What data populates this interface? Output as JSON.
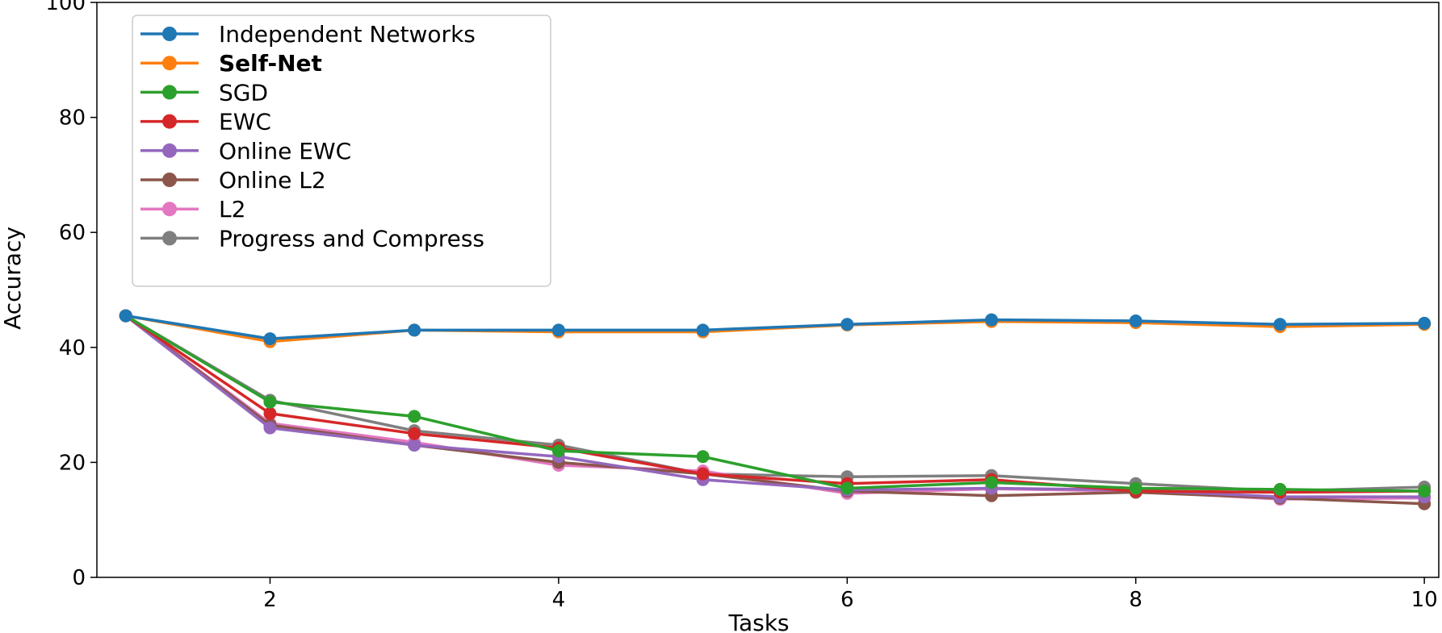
{
  "chart_data": {
    "type": "line",
    "title": "",
    "xlabel": "Tasks",
    "ylabel": "Accuracy",
    "xlim": [
      0.8,
      10.1
    ],
    "ylim": [
      0,
      100
    ],
    "xticks": [
      2,
      4,
      6,
      8,
      10
    ],
    "yticks": [
      0,
      20,
      40,
      60,
      80,
      100
    ],
    "grid": false,
    "legend_position": "top-left",
    "x": [
      1,
      2,
      3,
      4,
      5,
      6,
      7,
      8,
      9,
      10
    ],
    "series": [
      {
        "name": "Independent Networks",
        "bold": false,
        "color": "#1f77b4",
        "values": [
          45.5,
          41.5,
          43.0,
          43.0,
          43.0,
          44.0,
          44.8,
          44.6,
          44.0,
          44.2
        ]
      },
      {
        "name": "Self-Net",
        "bold": true,
        "color": "#ff7f0e",
        "values": [
          45.5,
          41.0,
          43.0,
          42.7,
          42.7,
          43.9,
          44.5,
          44.3,
          43.6,
          44.0
        ]
      },
      {
        "name": "SGD",
        "bold": false,
        "color": "#2ca02c",
        "values": [
          45.5,
          30.5,
          28.0,
          22.0,
          21.0,
          15.5,
          16.5,
          15.5,
          15.3,
          15.0
        ]
      },
      {
        "name": "EWC",
        "bold": false,
        "color": "#d62728",
        "values": [
          45.5,
          28.5,
          25.0,
          22.5,
          18.0,
          16.3,
          17.0,
          15.0,
          14.8,
          15.0
        ]
      },
      {
        "name": "Online EWC",
        "bold": false,
        "color": "#9467bd",
        "values": [
          45.5,
          26.0,
          23.0,
          21.0,
          17.0,
          15.2,
          15.5,
          15.2,
          14.0,
          14.0
        ]
      },
      {
        "name": "Online L2",
        "bold": false,
        "color": "#8c564b",
        "values": [
          45.5,
          26.5,
          23.0,
          20.0,
          18.0,
          15.0,
          14.2,
          14.8,
          13.8,
          12.8
        ]
      },
      {
        "name": "L2",
        "bold": false,
        "color": "#e377c2",
        "values": [
          45.5,
          26.8,
          23.5,
          19.5,
          18.5,
          14.6,
          15.4,
          15.0,
          13.6,
          13.8
        ]
      },
      {
        "name": "Progress and Compress",
        "bold": false,
        "color": "#7f7f7f",
        "values": [
          45.5,
          30.8,
          25.5,
          23.0,
          18.0,
          17.5,
          17.7,
          16.3,
          15.0,
          15.7
        ]
      }
    ]
  }
}
